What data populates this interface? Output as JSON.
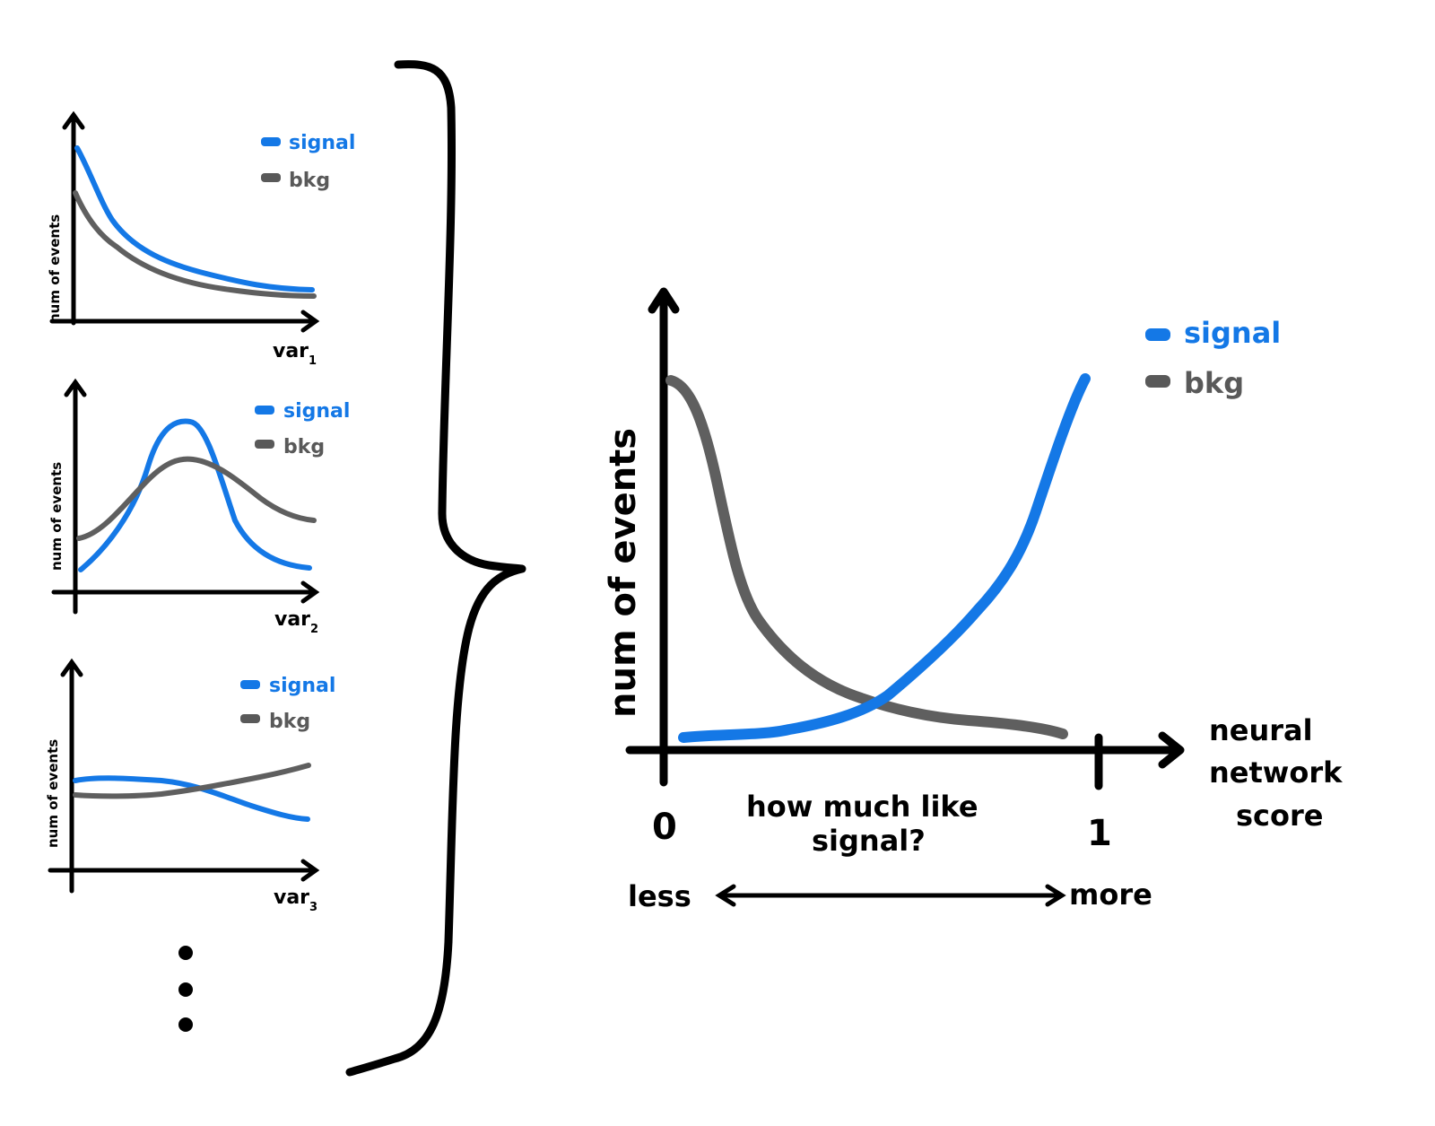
{
  "colors": {
    "signal": "#1478e6",
    "background": "#5f5f5f",
    "ink": "#000000"
  },
  "small_panels": [
    {
      "ylabel": "num of events",
      "xlabel_main": "var",
      "xlabel_sub": "1",
      "legend": {
        "signal": "signal",
        "bkg": "bkg"
      }
    },
    {
      "ylabel": "num of events",
      "xlabel_main": "var",
      "xlabel_sub": "2",
      "legend": {
        "signal": "signal",
        "bkg": "bkg"
      }
    },
    {
      "ylabel": "num of events",
      "xlabel_main": "var",
      "xlabel_sub": "3",
      "legend": {
        "signal": "signal",
        "bkg": "bkg"
      }
    }
  ],
  "ellipsis": "⋮",
  "big_panel": {
    "ylabel": "num of events",
    "xlabel_lines": [
      "neural",
      "network",
      "score"
    ],
    "tick_zero": "0",
    "tick_one": "1",
    "question_lines": [
      "how much like",
      "signal?"
    ],
    "less": "less",
    "more": "more",
    "legend": {
      "signal": "signal",
      "bkg": "bkg"
    }
  }
}
